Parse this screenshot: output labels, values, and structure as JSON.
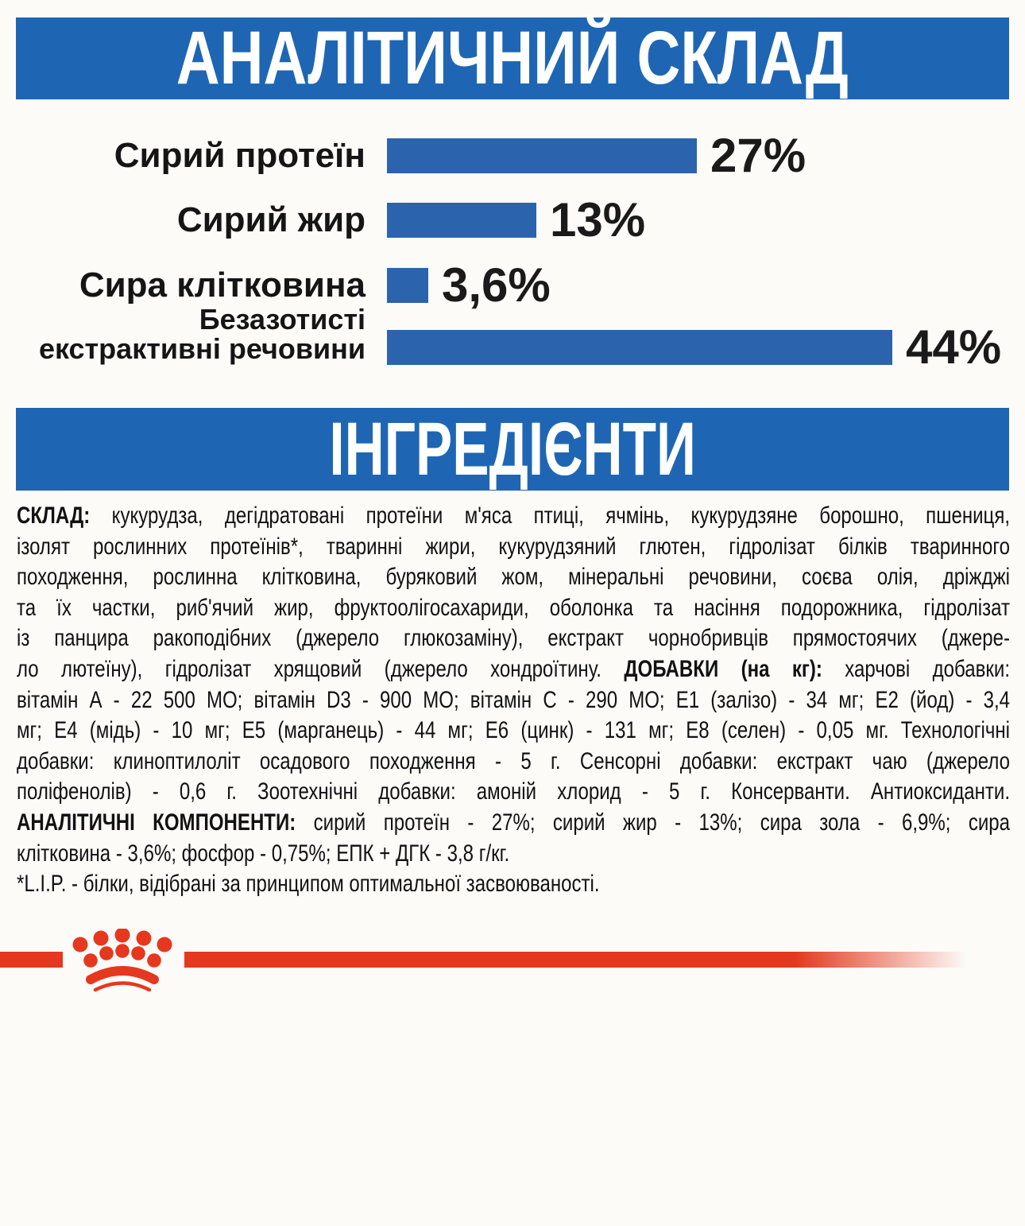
{
  "sections": {
    "analytical": {
      "title": "АНАЛІТИЧНИЙ СКЛАД"
    },
    "ingredients": {
      "title": "ІНГРЕДІЄНТИ"
    }
  },
  "colors": {
    "banner_blue": "#1e66b3",
    "bar_blue": "#2b64ad",
    "brand_red": "#e5381f",
    "text_black": "#111111"
  },
  "chart_data": {
    "type": "bar",
    "orientation": "horizontal",
    "title": "АНАЛІТИЧНИЙ СКЛАД",
    "categories": [
      "Сирий протеїн",
      "Сирий жир",
      "Сира клітковина",
      "Безазотисті екстрактивні речовини"
    ],
    "label_lines": [
      [
        "Сирий протеїн"
      ],
      [
        "Сирий жир"
      ],
      [
        "Сира клітковина"
      ],
      [
        "Безазотисті",
        "екстрактивні речовини"
      ]
    ],
    "values": [
      27,
      13,
      3.6,
      44
    ],
    "value_labels": [
      "27%",
      "13%",
      "3,6%",
      "44%"
    ],
    "unit": "%",
    "xlim": [
      0,
      48
    ],
    "grid": false,
    "legend": false,
    "bar_color": "#2b64ad"
  },
  "ingredients": {
    "lines": [
      {
        "seg": [
          {
            "t": "СКЛАД:",
            "b": true
          },
          {
            "t": " кукурудза, дегідратовані протеїни м'яса птиці, ячмінь, кукурудзяне борошно, пшениця,",
            "b": false
          }
        ]
      },
      {
        "seg": [
          {
            "t": "ізолят рослинних протеїнів*, тваринні жири, кукурудзяний глютен, гідролізат білків тваринного",
            "b": false
          }
        ]
      },
      {
        "seg": [
          {
            "t": "походження, рослинна клітковина, буряковий жом, мінеральні речовини, соєва олія, дріжджі",
            "b": false
          }
        ]
      },
      {
        "seg": [
          {
            "t": "та їх частки, риб'ячий жир, фруктоолігосахариди, оболонка та насіння подорожника, гідролізат",
            "b": false
          }
        ]
      },
      {
        "seg": [
          {
            "t": "із панцира ракоподібних (джерело глюкозаміну), екстракт чорнобривців прямостоячих (джере-",
            "b": false
          }
        ]
      },
      {
        "seg": [
          {
            "t": "ло лютеїну), гідролізат хрящовий (джерело хондроїтину. ",
            "b": false
          },
          {
            "t": "ДОБАВКИ (на кг):",
            "b": true
          },
          {
            "t": " харчові добавки:",
            "b": false
          }
        ]
      },
      {
        "seg": [
          {
            "t": "вітамін А - 22 500 МО; вітамін D3 - 900 МО; вітамін С - 290 МО; Е1 (залізо) - 34 мг; Е2 (йод) - 3,4",
            "b": false
          }
        ]
      },
      {
        "seg": [
          {
            "t": "мг; Е4 (мідь) - 10 мг; Е5 (марганець) - 44 мг; Е6 (цинк) - 131 мг; Е8 (селен) - 0,05 мг. Технологічні",
            "b": false
          }
        ]
      },
      {
        "seg": [
          {
            "t": "добавки: клиноптилоліт осадового походження - 5 г. Сенсорні добавки: екстракт чаю (джерело",
            "b": false
          }
        ]
      },
      {
        "seg": [
          {
            "t": "поліфенолів) - 0,6 г. Зоотехнічні добавки: амоній хлорид - 5 г. Консерванти. Антиоксиданти.",
            "b": false
          }
        ]
      },
      {
        "seg": [
          {
            "t": "АНАЛІТИЧНІ КОМПОНЕНТИ:",
            "b": true
          },
          {
            "t": " сирий протеїн - 27%; сирий жир - 13%; сира зола - 6,9%; сира",
            "b": false
          }
        ]
      },
      {
        "seg": [
          {
            "t": "клітковина - 3,6%; фосфор - 0,75%; ЕПК + ДГК - 3,8 г/кг.",
            "b": false
          }
        ],
        "end": true
      },
      {
        "seg": [
          {
            "t": "*L.I.P. - білки, відібрані за принципом оптимальної засвоюваності.",
            "b": false
          }
        ],
        "end": true
      }
    ]
  },
  "footer": {
    "logo": "royal-canin-crown-logo"
  }
}
